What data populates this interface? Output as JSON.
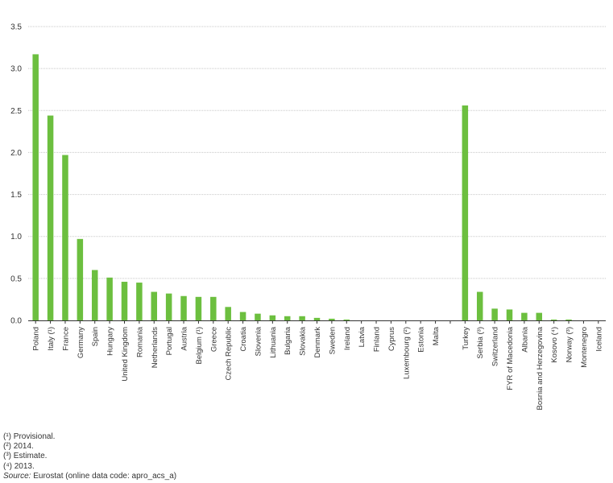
{
  "chart_data": {
    "type": "bar",
    "color": "#6cbf3f",
    "ylim": [
      0,
      3.5
    ],
    "yticks": [
      "0.0",
      "0.5",
      "1.0",
      "1.5",
      "2.0",
      "2.5",
      "3.0",
      "3.5"
    ],
    "grid": true,
    "legend": "none",
    "categories": [
      "Poland",
      "Italy (¹)",
      "France",
      "Germany",
      "Spain",
      "Hungary",
      "United Kingdom",
      "Romania",
      "Netherlands",
      "Portugal",
      "Austria",
      "Belgium (¹)",
      "Greece",
      "Czech Republic",
      "Croatia",
      "Slovenia",
      "Lithuania",
      "Bulgaria",
      "Slovakia",
      "Denmark",
      "Sweden",
      "Ireland",
      "Latvia",
      "Finland",
      "Cyprus",
      "Luxembourg (²)",
      "Estonia",
      "Malta",
      "",
      "Turkey",
      "Serbia (³)",
      "Switzerland",
      "FYR of Macedonia",
      "Albania",
      "Bosnia and Herzegovina",
      "Kosovo (⁴)",
      "Norway (³)",
      "Montenegro",
      "Iceland"
    ],
    "values": [
      3.17,
      2.44,
      1.97,
      0.97,
      0.6,
      0.51,
      0.46,
      0.45,
      0.34,
      0.32,
      0.29,
      0.28,
      0.28,
      0.16,
      0.1,
      0.08,
      0.06,
      0.05,
      0.05,
      0.03,
      0.02,
      0.01,
      0.0,
      0.0,
      0.0,
      0.0,
      0.0,
      0.0,
      null,
      2.56,
      0.34,
      0.14,
      0.13,
      0.09,
      0.09,
      0.01,
      0.01,
      0.0,
      0.0
    ]
  },
  "footnotes": [
    "(¹) Provisional.",
    "(²) 2014.",
    "(³) Estimate.",
    "(⁴) 2013."
  ],
  "source": {
    "label": "Source:",
    "text": " Eurostat (online data code: apro_acs_a)"
  }
}
